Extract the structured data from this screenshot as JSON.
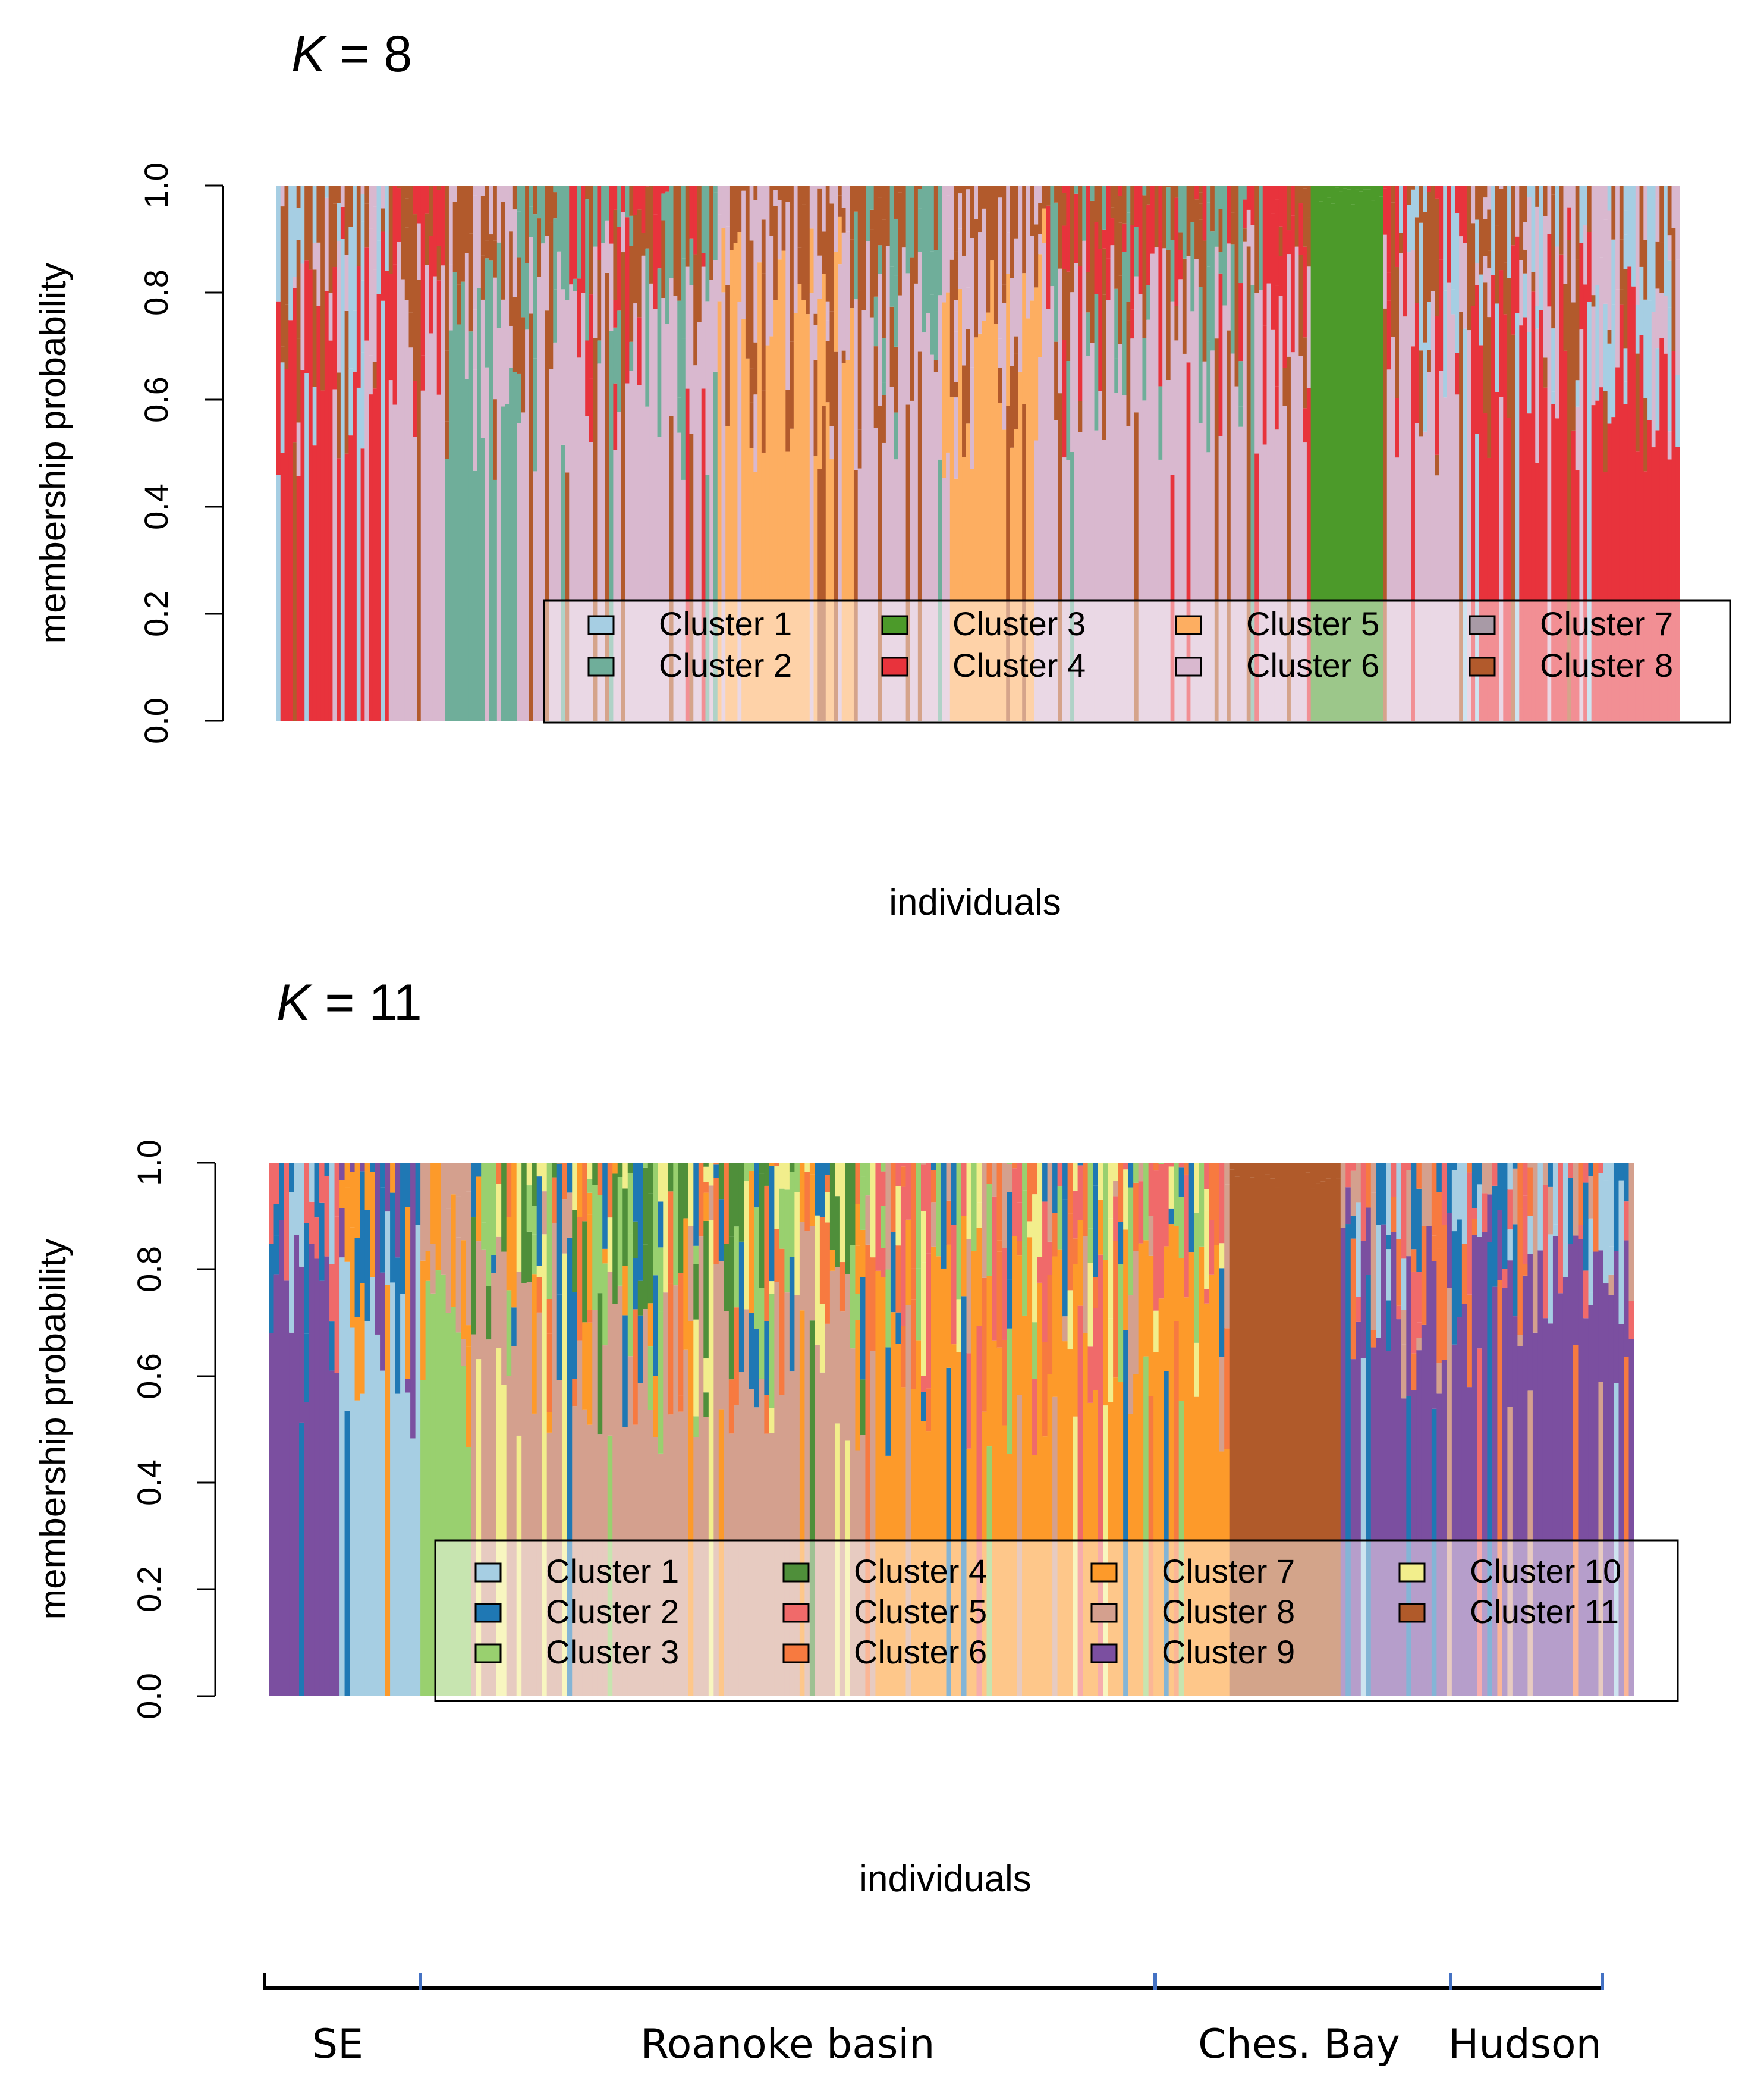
{
  "chart_data": [
    {
      "type": "bar",
      "subtype": "stacked-membership (STRUCTURE-style)",
      "title_var": "K",
      "title_rest": " = 8",
      "xlabel": "individuals",
      "ylabel": "membership probability",
      "ylim": [
        0,
        1
      ],
      "yticks": [
        "0.0",
        "0.2",
        "0.4",
        "0.6",
        "0.8",
        "1.0"
      ],
      "grid": false,
      "legend_placement": "bottom-right, inside plot",
      "clusters": [
        {
          "name": "Cluster 1",
          "color": "#a6cee3"
        },
        {
          "name": "Cluster 2",
          "color": "#6fae9a"
        },
        {
          "name": "Cluster 3",
          "color": "#4c9a2a"
        },
        {
          "name": "Cluster 4",
          "color": "#e8333c"
        },
        {
          "name": "Cluster 5",
          "color": "#fdae61"
        },
        {
          "name": "Cluster 6",
          "color": "#d9b8cf"
        },
        {
          "name": "Cluster 7",
          "color": "#a89aa6"
        },
        {
          "name": "Cluster 8",
          "color": "#b25a2c"
        }
      ],
      "individual_segments": [
        {
          "n": 28,
          "dominant": "Cluster 4",
          "mix": [
            "Cluster 6",
            "Cluster 1",
            "Cluster 8"
          ]
        },
        {
          "n": 14,
          "dominant": "Cluster 6",
          "mix": [
            "Cluster 4",
            "Cluster 8"
          ]
        },
        {
          "n": 18,
          "dominant": "Cluster 2",
          "mix": [
            "Cluster 6",
            "Cluster 8"
          ]
        },
        {
          "n": 12,
          "dominant": "Cluster 6",
          "mix": [
            "Cluster 8",
            "Cluster 2"
          ]
        },
        {
          "n": 38,
          "dominant": "Cluster 6",
          "mix": [
            "Cluster 8",
            "Cluster 2",
            "Cluster 4"
          ]
        },
        {
          "n": 34,
          "dominant": "Cluster 5",
          "mix": [
            "Cluster 8",
            "Cluster 6"
          ]
        },
        {
          "n": 22,
          "dominant": "Cluster 6",
          "mix": [
            "Cluster 8",
            "Cluster 2"
          ]
        },
        {
          "n": 26,
          "dominant": "Cluster 5",
          "mix": [
            "Cluster 8",
            "Cluster 6"
          ]
        },
        {
          "n": 54,
          "dominant": "Cluster 6",
          "mix": [
            "Cluster 2",
            "Cluster 8",
            "Cluster 4"
          ]
        },
        {
          "n": 12,
          "dominant": "Cluster 6",
          "mix": [
            "Cluster 4",
            "Cluster 8"
          ]
        },
        {
          "n": 18,
          "dominant": "Cluster 3",
          "mix": []
        },
        {
          "n": 22,
          "dominant": "Cluster 6",
          "mix": [
            "Cluster 4",
            "Cluster 1",
            "Cluster 8"
          ]
        },
        {
          "n": 52,
          "dominant": "Cluster 4",
          "mix": [
            "Cluster 6",
            "Cluster 8",
            "Cluster 1"
          ]
        }
      ]
    },
    {
      "type": "bar",
      "subtype": "stacked-membership (STRUCTURE-style)",
      "title_var": "K",
      "title_rest": " = 11",
      "xlabel": "individuals",
      "ylabel": "membership probability",
      "ylim": [
        0,
        1
      ],
      "yticks": [
        "0.0",
        "0.2",
        "0.4",
        "0.6",
        "0.8",
        "1.0"
      ],
      "grid": false,
      "legend_placement": "bottom-right, inside plot",
      "clusters": [
        {
          "name": "Cluster 1",
          "color": "#a6cee3"
        },
        {
          "name": "Cluster 2",
          "color": "#1f78b4"
        },
        {
          "name": "Cluster 3",
          "color": "#99d06f"
        },
        {
          "name": "Cluster 4",
          "color": "#4f8f3a"
        },
        {
          "name": "Cluster 5",
          "color": "#f06a6a"
        },
        {
          "name": "Cluster 6",
          "color": "#f77a40"
        },
        {
          "name": "Cluster 7",
          "color": "#fd9a2a"
        },
        {
          "name": "Cluster 8",
          "color": "#d4a08e"
        },
        {
          "name": "Cluster 9",
          "color": "#7b4fa0"
        },
        {
          "name": "Cluster 10",
          "color": "#f2ee8c"
        },
        {
          "name": "Cluster 11",
          "color": "#b05a2a"
        }
      ],
      "individual_segments": [
        {
          "n": 14,
          "dominant": "Cluster 9",
          "mix": [
            "Cluster 2",
            "Cluster 1",
            "Cluster 5"
          ]
        },
        {
          "n": 16,
          "dominant": "Cluster 1",
          "mix": [
            "Cluster 9",
            "Cluster 2",
            "Cluster 7"
          ]
        },
        {
          "n": 10,
          "dominant": "Cluster 3",
          "mix": [
            "Cluster 8",
            "Cluster 7"
          ]
        },
        {
          "n": 80,
          "dominant": "Cluster 8",
          "mix": [
            "Cluster 7",
            "Cluster 2",
            "Cluster 6",
            "Cluster 3",
            "Cluster 10",
            "Cluster 4"
          ]
        },
        {
          "n": 70,
          "dominant": "Cluster 7",
          "mix": [
            "Cluster 8",
            "Cluster 6",
            "Cluster 3",
            "Cluster 2",
            "Cluster 5",
            "Cluster 10"
          ]
        },
        {
          "n": 22,
          "dominant": "Cluster 11",
          "mix": []
        },
        {
          "n": 58,
          "dominant": "Cluster 9",
          "mix": [
            "Cluster 6",
            "Cluster 8",
            "Cluster 2",
            "Cluster 1",
            "Cluster 5"
          ]
        }
      ],
      "regions": [
        {
          "label": "SE"
        },
        {
          "label": "Roanoke basin"
        },
        {
          "label": "Ches. Bay"
        },
        {
          "label": "Hudson"
        }
      ]
    }
  ]
}
